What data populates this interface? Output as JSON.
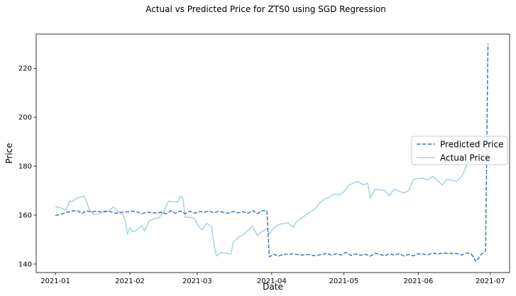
{
  "chart_data": {
    "type": "line",
    "title": "Actual vs Predicted Price for ZTS0 using SGD Regression",
    "xlabel": "Date",
    "ylabel": "Price",
    "x_range": [
      "2020-12-24",
      "2021-07-09"
    ],
    "ylim": [
      136.5,
      234
    ],
    "x_ticks": [
      {
        "date": "2021-01-01",
        "label": "2021-01"
      },
      {
        "date": "2021-02-01",
        "label": "2021-02"
      },
      {
        "date": "2021-03-01",
        "label": "2021-03"
      },
      {
        "date": "2021-04-01",
        "label": "2021-04"
      },
      {
        "date": "2021-05-01",
        "label": "2021-05"
      },
      {
        "date": "2021-06-01",
        "label": "2021-06"
      },
      {
        "date": "2021-07-01",
        "label": "2021-07"
      }
    ],
    "y_ticks": [
      140,
      160,
      180,
      200,
      220
    ],
    "grid": false,
    "legend": {
      "position": "center-right"
    },
    "series": [
      {
        "name": "Predicted Price",
        "color": "#3a7ab8",
        "style": "dashed",
        "points": [
          [
            "2021-01-01",
            159.8
          ],
          [
            "2021-01-04",
            160.5
          ],
          [
            "2021-01-06",
            161.2
          ],
          [
            "2021-01-08",
            161.6
          ],
          [
            "2021-01-10",
            161.9
          ],
          [
            "2021-01-12",
            160.7
          ],
          [
            "2021-01-14",
            161.8
          ],
          [
            "2021-01-16",
            161.2
          ],
          [
            "2021-01-18",
            161.6
          ],
          [
            "2021-01-20",
            161.3
          ],
          [
            "2021-01-22",
            161.6
          ],
          [
            "2021-01-24",
            161.4
          ],
          [
            "2021-01-26",
            160.7
          ],
          [
            "2021-01-28",
            161.1
          ],
          [
            "2021-01-31",
            161.3
          ],
          [
            "2021-02-02",
            161.6
          ],
          [
            "2021-02-04",
            161.3
          ],
          [
            "2021-02-06",
            160.6
          ],
          [
            "2021-02-08",
            161.1
          ],
          [
            "2021-02-10",
            161.1
          ],
          [
            "2021-02-12",
            160.8
          ],
          [
            "2021-02-14",
            161.2
          ],
          [
            "2021-02-16",
            160.5
          ],
          [
            "2021-02-18",
            161.8
          ],
          [
            "2021-02-20",
            160.7
          ],
          [
            "2021-02-22",
            161.7
          ],
          [
            "2021-02-24",
            160.6
          ],
          [
            "2021-02-26",
            161.6
          ],
          [
            "2021-02-28",
            160.8
          ],
          [
            "2021-03-02",
            161.4
          ],
          [
            "2021-03-04",
            161.2
          ],
          [
            "2021-03-06",
            161.6
          ],
          [
            "2021-03-08",
            160.9
          ],
          [
            "2021-03-10",
            161.6
          ],
          [
            "2021-03-12",
            161.1
          ],
          [
            "2021-03-14",
            160.8
          ],
          [
            "2021-03-16",
            161.5
          ],
          [
            "2021-03-18",
            160.9
          ],
          [
            "2021-03-20",
            161.4
          ],
          [
            "2021-03-22",
            160.7
          ],
          [
            "2021-03-24",
            161.9
          ],
          [
            "2021-03-26",
            160.6
          ],
          [
            "2021-03-28",
            161.8
          ],
          [
            "2021-03-30",
            161.8
          ],
          [
            "2021-03-31",
            143.0
          ],
          [
            "2021-04-02",
            143.9
          ],
          [
            "2021-04-04",
            143.3
          ],
          [
            "2021-04-06",
            144.1
          ],
          [
            "2021-04-08",
            143.8
          ],
          [
            "2021-04-10",
            144.2
          ],
          [
            "2021-04-13",
            143.6
          ],
          [
            "2021-04-16",
            143.9
          ],
          [
            "2021-04-19",
            143.4
          ],
          [
            "2021-04-22",
            143.9
          ],
          [
            "2021-04-24",
            144.4
          ],
          [
            "2021-04-26",
            143.6
          ],
          [
            "2021-04-28",
            144.2
          ],
          [
            "2021-04-30",
            143.7
          ],
          [
            "2021-05-02",
            144.8
          ],
          [
            "2021-05-04",
            143.5
          ],
          [
            "2021-05-06",
            144.1
          ],
          [
            "2021-05-08",
            143.6
          ],
          [
            "2021-05-10",
            144.0
          ],
          [
            "2021-05-12",
            143.2
          ],
          [
            "2021-05-14",
            144.4
          ],
          [
            "2021-05-16",
            144.0
          ],
          [
            "2021-05-18",
            143.3
          ],
          [
            "2021-05-20",
            144.3
          ],
          [
            "2021-05-22",
            143.6
          ],
          [
            "2021-05-24",
            144.2
          ],
          [
            "2021-05-26",
            143.3
          ],
          [
            "2021-05-28",
            143.9
          ],
          [
            "2021-05-30",
            143.4
          ],
          [
            "2021-06-01",
            144.2
          ],
          [
            "2021-06-03",
            144.0
          ],
          [
            "2021-06-05",
            143.7
          ],
          [
            "2021-06-07",
            144.6
          ],
          [
            "2021-06-09",
            144.0
          ],
          [
            "2021-06-11",
            144.5
          ],
          [
            "2021-06-13",
            144.4
          ],
          [
            "2021-06-15",
            144.4
          ],
          [
            "2021-06-17",
            144.3
          ],
          [
            "2021-06-19",
            143.7
          ],
          [
            "2021-06-21",
            144.5
          ],
          [
            "2021-06-23",
            144.2
          ],
          [
            "2021-06-25",
            141.0
          ],
          [
            "2021-06-27",
            143.8
          ],
          [
            "2021-06-29",
            145.3
          ],
          [
            "2021-06-30",
            230.0
          ]
        ]
      },
      {
        "name": "Actual Price",
        "color": "#a7d3e3",
        "style": "solid",
        "points": [
          [
            "2021-01-01",
            163.6
          ],
          [
            "2021-01-04",
            162.6
          ],
          [
            "2021-01-05",
            162.0
          ],
          [
            "2021-01-06",
            163.5
          ],
          [
            "2021-01-07",
            165.8
          ],
          [
            "2021-01-08",
            165.5
          ],
          [
            "2021-01-10",
            167.0
          ],
          [
            "2021-01-12",
            167.5
          ],
          [
            "2021-01-13",
            167.8
          ],
          [
            "2021-01-15",
            162.5
          ],
          [
            "2021-01-17",
            160.2
          ],
          [
            "2021-01-19",
            160.6
          ],
          [
            "2021-01-21",
            161.0
          ],
          [
            "2021-01-23",
            161.6
          ],
          [
            "2021-01-25",
            163.3
          ],
          [
            "2021-01-27",
            161.6
          ],
          [
            "2021-01-29",
            160.2
          ],
          [
            "2021-01-30",
            157.8
          ],
          [
            "2021-01-31",
            152.2
          ],
          [
            "2021-02-01",
            155.0
          ],
          [
            "2021-02-02",
            153.3
          ],
          [
            "2021-02-04",
            153.8
          ],
          [
            "2021-02-06",
            155.8
          ],
          [
            "2021-02-07",
            153.5
          ],
          [
            "2021-02-09",
            157.5
          ],
          [
            "2021-02-11",
            158.6
          ],
          [
            "2021-02-13",
            158.8
          ],
          [
            "2021-02-15",
            161.2
          ],
          [
            "2021-02-17",
            165.7
          ],
          [
            "2021-02-19",
            165.4
          ],
          [
            "2021-02-21",
            165.4
          ],
          [
            "2021-02-22",
            167.8
          ],
          [
            "2021-02-23",
            167.0
          ],
          [
            "2021-02-24",
            159.0
          ],
          [
            "2021-02-26",
            159.2
          ],
          [
            "2021-02-28",
            158.4
          ],
          [
            "2021-03-01",
            156.5
          ],
          [
            "2021-03-02",
            154.8
          ],
          [
            "2021-03-03",
            154.0
          ],
          [
            "2021-03-05",
            156.6
          ],
          [
            "2021-03-07",
            155.4
          ],
          [
            "2021-03-08",
            147.6
          ],
          [
            "2021-03-09",
            143.3
          ],
          [
            "2021-03-11",
            144.8
          ],
          [
            "2021-03-13",
            144.4
          ],
          [
            "2021-03-15",
            144.0
          ],
          [
            "2021-03-16",
            148.8
          ],
          [
            "2021-03-18",
            150.8
          ],
          [
            "2021-03-20",
            152.0
          ],
          [
            "2021-03-22",
            153.5
          ],
          [
            "2021-03-24",
            155.6
          ],
          [
            "2021-03-26",
            151.6
          ],
          [
            "2021-03-28",
            153.3
          ],
          [
            "2021-03-30",
            154.6
          ],
          [
            "2021-03-31",
            152.2
          ],
          [
            "2021-04-02",
            155.0
          ],
          [
            "2021-04-04",
            156.2
          ],
          [
            "2021-04-06",
            156.6
          ],
          [
            "2021-04-08",
            156.8
          ],
          [
            "2021-04-10",
            155.0
          ],
          [
            "2021-04-11",
            157.0
          ],
          [
            "2021-04-13",
            158.6
          ],
          [
            "2021-04-15",
            159.8
          ],
          [
            "2021-04-17",
            161.4
          ],
          [
            "2021-04-19",
            162.4
          ],
          [
            "2021-04-21",
            165.0
          ],
          [
            "2021-04-23",
            166.6
          ],
          [
            "2021-04-25",
            167.3
          ],
          [
            "2021-04-27",
            168.6
          ],
          [
            "2021-04-29",
            168.3
          ],
          [
            "2021-05-01",
            169.5
          ],
          [
            "2021-05-03",
            172.2
          ],
          [
            "2021-05-05",
            173.1
          ],
          [
            "2021-05-07",
            173.8
          ],
          [
            "2021-05-09",
            172.4
          ],
          [
            "2021-05-11",
            173.0
          ],
          [
            "2021-05-12",
            167.0
          ],
          [
            "2021-05-14",
            170.6
          ],
          [
            "2021-05-16",
            170.3
          ],
          [
            "2021-05-18",
            170.2
          ],
          [
            "2021-05-20",
            167.9
          ],
          [
            "2021-05-22",
            170.6
          ],
          [
            "2021-05-24",
            169.8
          ],
          [
            "2021-05-26",
            169.0
          ],
          [
            "2021-05-28",
            170.0
          ],
          [
            "2021-05-30",
            174.6
          ],
          [
            "2021-06-01",
            175.0
          ],
          [
            "2021-06-03",
            175.1
          ],
          [
            "2021-06-05",
            174.4
          ],
          [
            "2021-06-07",
            175.9
          ],
          [
            "2021-06-09",
            174.0
          ],
          [
            "2021-06-11",
            172.4
          ],
          [
            "2021-06-13",
            174.6
          ],
          [
            "2021-06-15",
            174.3
          ],
          [
            "2021-06-17",
            173.8
          ],
          [
            "2021-06-19",
            175.6
          ],
          [
            "2021-06-21",
            180.0
          ],
          [
            "2021-06-22",
            183.5
          ]
        ]
      }
    ]
  }
}
